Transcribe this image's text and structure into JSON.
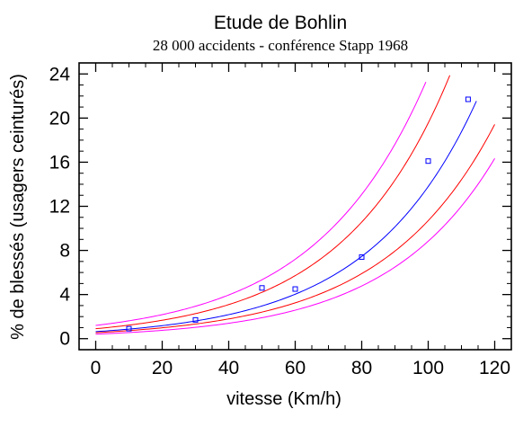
{
  "chart_data": {
    "type": "scatter",
    "title": "Etude de Bohlin",
    "subtitle": "28 000 accidents - conférence Stapp 1968",
    "xlabel": "vitesse (Km/h)",
    "ylabel": "% de blessés (usagers ceinturés)",
    "xlim": [
      -5,
      125
    ],
    "ylim": [
      -1,
      25
    ],
    "x_ticks": [
      0,
      20,
      40,
      60,
      80,
      100,
      120
    ],
    "y_ticks": [
      0,
      4,
      8,
      12,
      16,
      20,
      24
    ],
    "x_minor_step": 5,
    "y_minor_step": 1,
    "grid": false,
    "legend": "none",
    "points": {
      "color": "#0000ff",
      "x": [
        10,
        30,
        50,
        60,
        80,
        100,
        112
      ],
      "y": [
        0.9,
        1.7,
        4.6,
        4.5,
        7.4,
        16.1,
        21.7
      ]
    },
    "curves": [
      {
        "role": "fit",
        "color": "#0000ff",
        "a": 0.637,
        "b": 0.03075,
        "x_range": [
          0,
          114.5
        ]
      },
      {
        "role": "confidence-upper",
        "color": "#ff0000",
        "a": 0.903,
        "b": 0.03075,
        "x_range": [
          0,
          106.5
        ]
      },
      {
        "role": "confidence-lower",
        "color": "#ff0000",
        "a": 0.543,
        "b": 0.02981,
        "x_range": [
          0,
          120
        ]
      },
      {
        "role": "prediction-upper",
        "color": "#ff00ff",
        "a": 1.2,
        "b": 0.02986,
        "x_range": [
          0,
          99.3
        ]
      },
      {
        "role": "prediction-lower",
        "color": "#ff00ff",
        "a": 0.408,
        "b": 0.03075,
        "x_range": [
          0,
          120
        ]
      }
    ]
  }
}
